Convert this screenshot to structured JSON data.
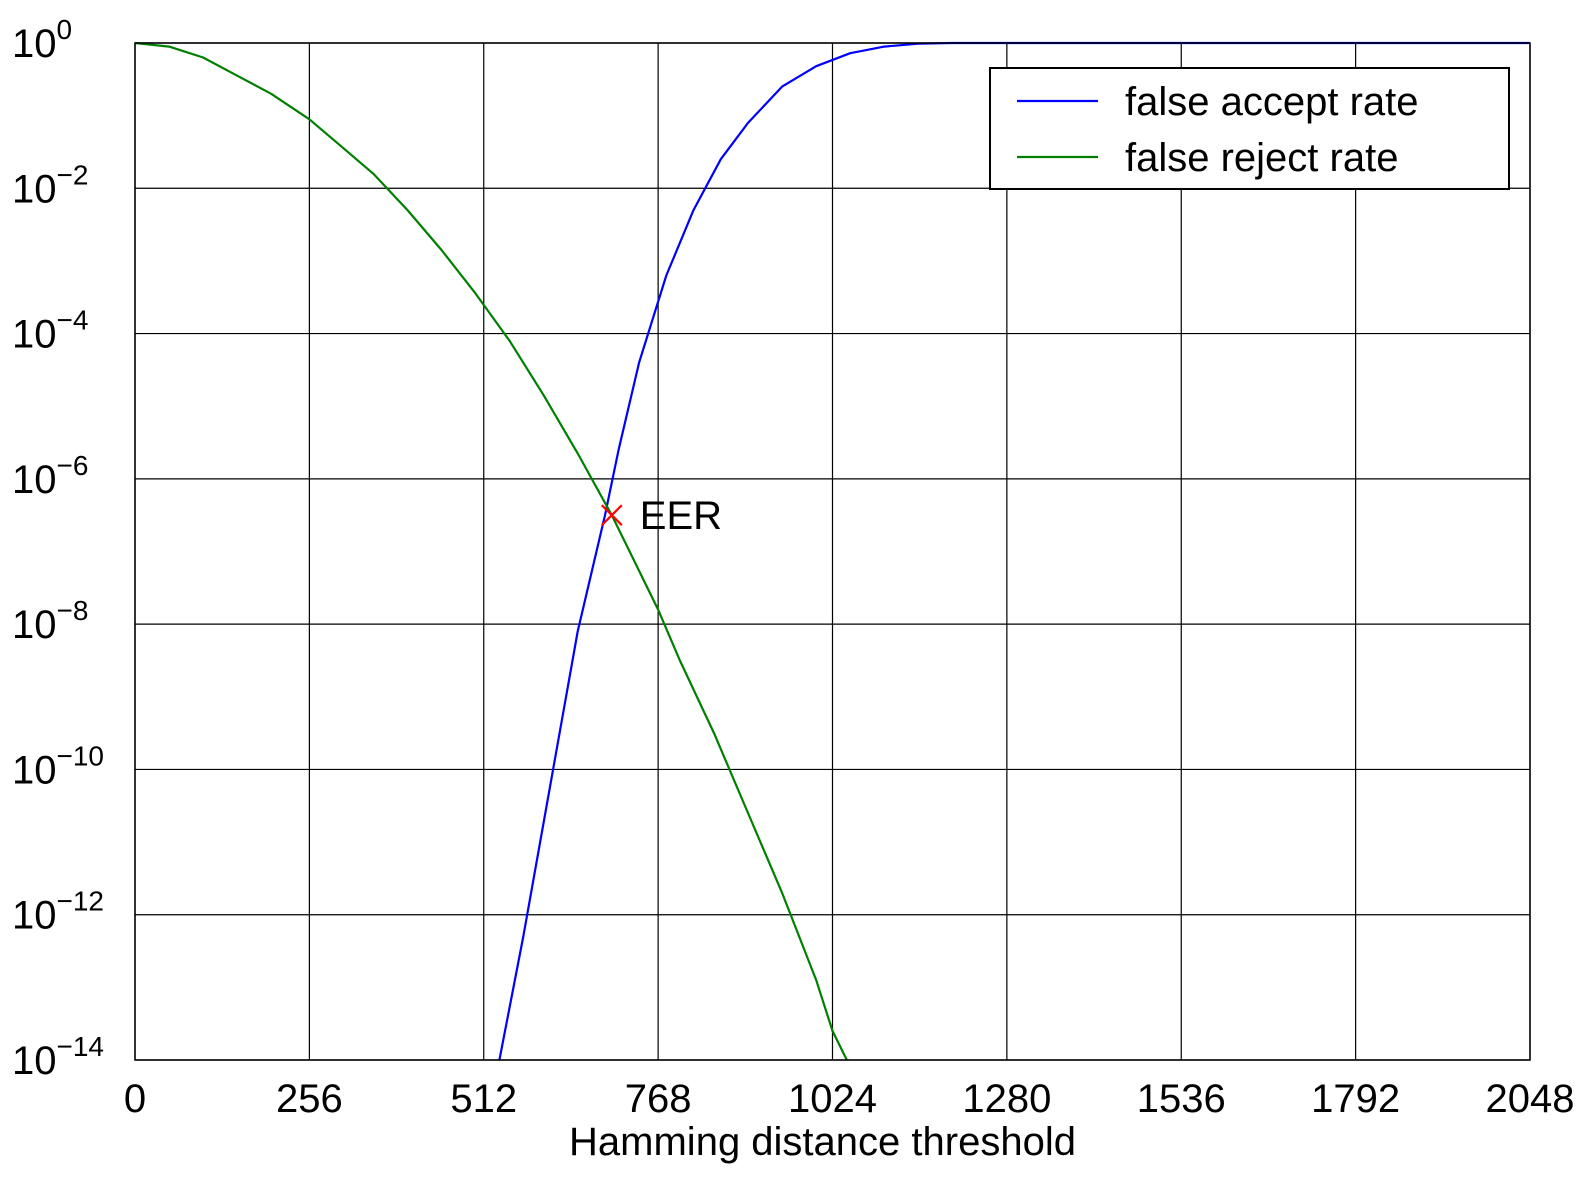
{
  "chart_data": {
    "type": "line",
    "xlabel": "Hamming distance threshold",
    "ylabel": "",
    "xlim": [
      0,
      2048
    ],
    "ylim_log10": [
      -14,
      0
    ],
    "y_scale": "log",
    "grid": true,
    "legend_position": "top-right",
    "x_ticks": [
      0,
      256,
      512,
      768,
      1024,
      1280,
      1536,
      1792,
      2048
    ],
    "x_tick_labels": [
      "0",
      "256",
      "512",
      "768",
      "1024",
      "1280",
      "1536",
      "1792",
      "2048"
    ],
    "y_ticks_log10": [
      0,
      -2,
      -4,
      -6,
      -8,
      -10,
      -12,
      -14
    ],
    "y_tick_base": "10",
    "y_tick_exponents": [
      "0",
      "−2",
      "−4",
      "−6",
      "−8",
      "−10",
      "−12",
      "−14"
    ],
    "series": [
      {
        "name": "false accept rate",
        "color": "#0000ff",
        "points": [
          {
            "x": 535,
            "y_log10": -14
          },
          {
            "x": 570,
            "y_log10": -12.3
          },
          {
            "x": 610,
            "y_log10": -10.2
          },
          {
            "x": 650,
            "y_log10": -8.1
          },
          {
            "x": 690,
            "y_log10": -6.5
          },
          {
            "x": 710,
            "y_log10": -5.6
          },
          {
            "x": 740,
            "y_log10": -4.4
          },
          {
            "x": 780,
            "y_log10": -3.2
          },
          {
            "x": 820,
            "y_log10": -2.3
          },
          {
            "x": 860,
            "y_log10": -1.6
          },
          {
            "x": 900,
            "y_log10": -1.1
          },
          {
            "x": 950,
            "y_log10": -0.6
          },
          {
            "x": 1000,
            "y_log10": -0.32
          },
          {
            "x": 1050,
            "y_log10": -0.14
          },
          {
            "x": 1100,
            "y_log10": -0.05
          },
          {
            "x": 1150,
            "y_log10": -0.01
          },
          {
            "x": 1200,
            "y_log10": 0
          },
          {
            "x": 2048,
            "y_log10": 0
          }
        ]
      },
      {
        "name": "false reject rate",
        "color": "#008000",
        "points": [
          {
            "x": 0,
            "y_log10": 0
          },
          {
            "x": 50,
            "y_log10": -0.05
          },
          {
            "x": 100,
            "y_log10": -0.2
          },
          {
            "x": 150,
            "y_log10": -0.45
          },
          {
            "x": 200,
            "y_log10": -0.7
          },
          {
            "x": 256,
            "y_log10": -1.05
          },
          {
            "x": 300,
            "y_log10": -1.4
          },
          {
            "x": 350,
            "y_log10": -1.8
          },
          {
            "x": 400,
            "y_log10": -2.3
          },
          {
            "x": 450,
            "y_log10": -2.85
          },
          {
            "x": 500,
            "y_log10": -3.45
          },
          {
            "x": 550,
            "y_log10": -4.1
          },
          {
            "x": 600,
            "y_log10": -4.85
          },
          {
            "x": 650,
            "y_log10": -5.65
          },
          {
            "x": 700,
            "y_log10": -6.5
          },
          {
            "x": 768,
            "y_log10": -7.8
          },
          {
            "x": 800,
            "y_log10": -8.5
          },
          {
            "x": 850,
            "y_log10": -9.5
          },
          {
            "x": 900,
            "y_log10": -10.6
          },
          {
            "x": 950,
            "y_log10": -11.7
          },
          {
            "x": 1000,
            "y_log10": -12.9
          },
          {
            "x": 1024,
            "y_log10": -13.6
          },
          {
            "x": 1045,
            "y_log10": -14
          }
        ]
      }
    ],
    "annotation": {
      "label": "EER",
      "marker": "x",
      "color": "#ff0000",
      "x": 700,
      "y_log10": -6.5
    }
  }
}
